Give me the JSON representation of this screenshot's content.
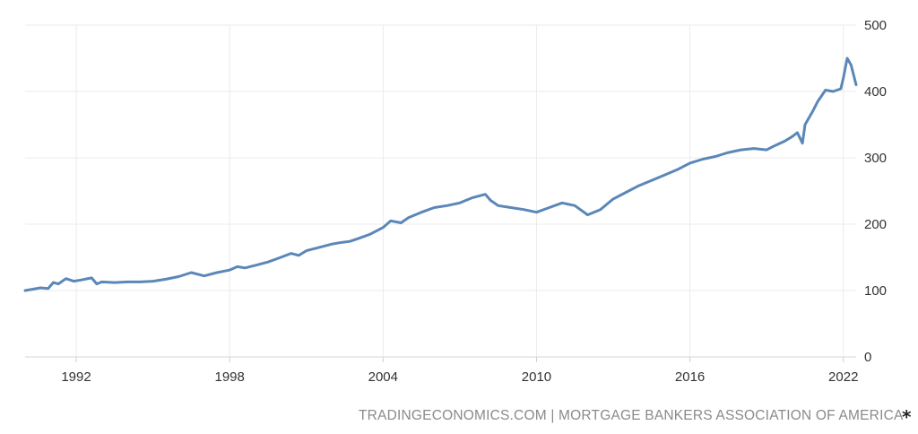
{
  "chart_data": {
    "type": "line",
    "title": "",
    "xlabel": "",
    "ylabel": "",
    "ylim": [
      0,
      500
    ],
    "xlim": [
      1990,
      2022.5
    ],
    "grid": true,
    "line_color": "#5b87b8",
    "y_ticks": [
      0,
      100,
      200,
      300,
      400,
      500
    ],
    "x_ticks": [
      1992,
      1998,
      2004,
      2010,
      2016,
      2022
    ],
    "series": [
      {
        "x": [
          1990.0,
          1990.3,
          1990.6,
          1990.9,
          1991.1,
          1991.3,
          1991.6,
          1991.9,
          1992.2,
          1992.6,
          1992.8,
          1993.0,
          1993.5,
          1994.0,
          1994.5,
          1995.0,
          1995.5,
          1996.0,
          1996.5,
          1996.8,
          1997.0,
          1997.5,
          1998.0,
          1998.3,
          1998.6,
          1999.0,
          1999.5,
          2000.0,
          2000.4,
          2000.7,
          2001.0,
          2001.5,
          2002.0,
          2002.3,
          2002.7,
          2003.0,
          2003.5,
          2004.0,
          2004.3,
          2004.7,
          2005.0,
          2005.5,
          2006.0,
          2006.5,
          2007.0,
          2007.5,
          2008.0,
          2008.2,
          2008.5,
          2009.0,
          2009.5,
          2010.0,
          2010.5,
          2011.0,
          2011.5,
          2012.0,
          2012.5,
          2013.0,
          2013.5,
          2014.0,
          2014.5,
          2015.0,
          2015.5,
          2016.0,
          2016.5,
          2017.0,
          2017.5,
          2018.0,
          2018.5,
          2019.0,
          2019.3,
          2019.7,
          2020.0,
          2020.2,
          2020.4,
          2020.5,
          2020.8,
          2021.0,
          2021.3,
          2021.6,
          2021.9,
          2022.0,
          2022.15,
          2022.3,
          2022.5
        ],
        "values": [
          100,
          102,
          104,
          103,
          112,
          110,
          118,
          114,
          116,
          119,
          110,
          113,
          112,
          113,
          113,
          114,
          117,
          121,
          127,
          124,
          122,
          127,
          131,
          136,
          134,
          138,
          143,
          150,
          156,
          153,
          160,
          165,
          170,
          172,
          174,
          178,
          185,
          195,
          205,
          202,
          210,
          218,
          225,
          228,
          232,
          240,
          245,
          236,
          228,
          225,
          222,
          218,
          225,
          232,
          228,
          214,
          222,
          238,
          248,
          258,
          266,
          274,
          282,
          292,
          298,
          302,
          308,
          312,
          314,
          312,
          318,
          325,
          332,
          338,
          322,
          350,
          370,
          385,
          402,
          400,
          404,
          420,
          450,
          440,
          410
        ]
      }
    ]
  },
  "footer": {
    "source": "TRADINGECONOMICS.COM | MORTGAGE BANKERS ASSOCIATION OF AMERICA",
    "star": "*"
  }
}
